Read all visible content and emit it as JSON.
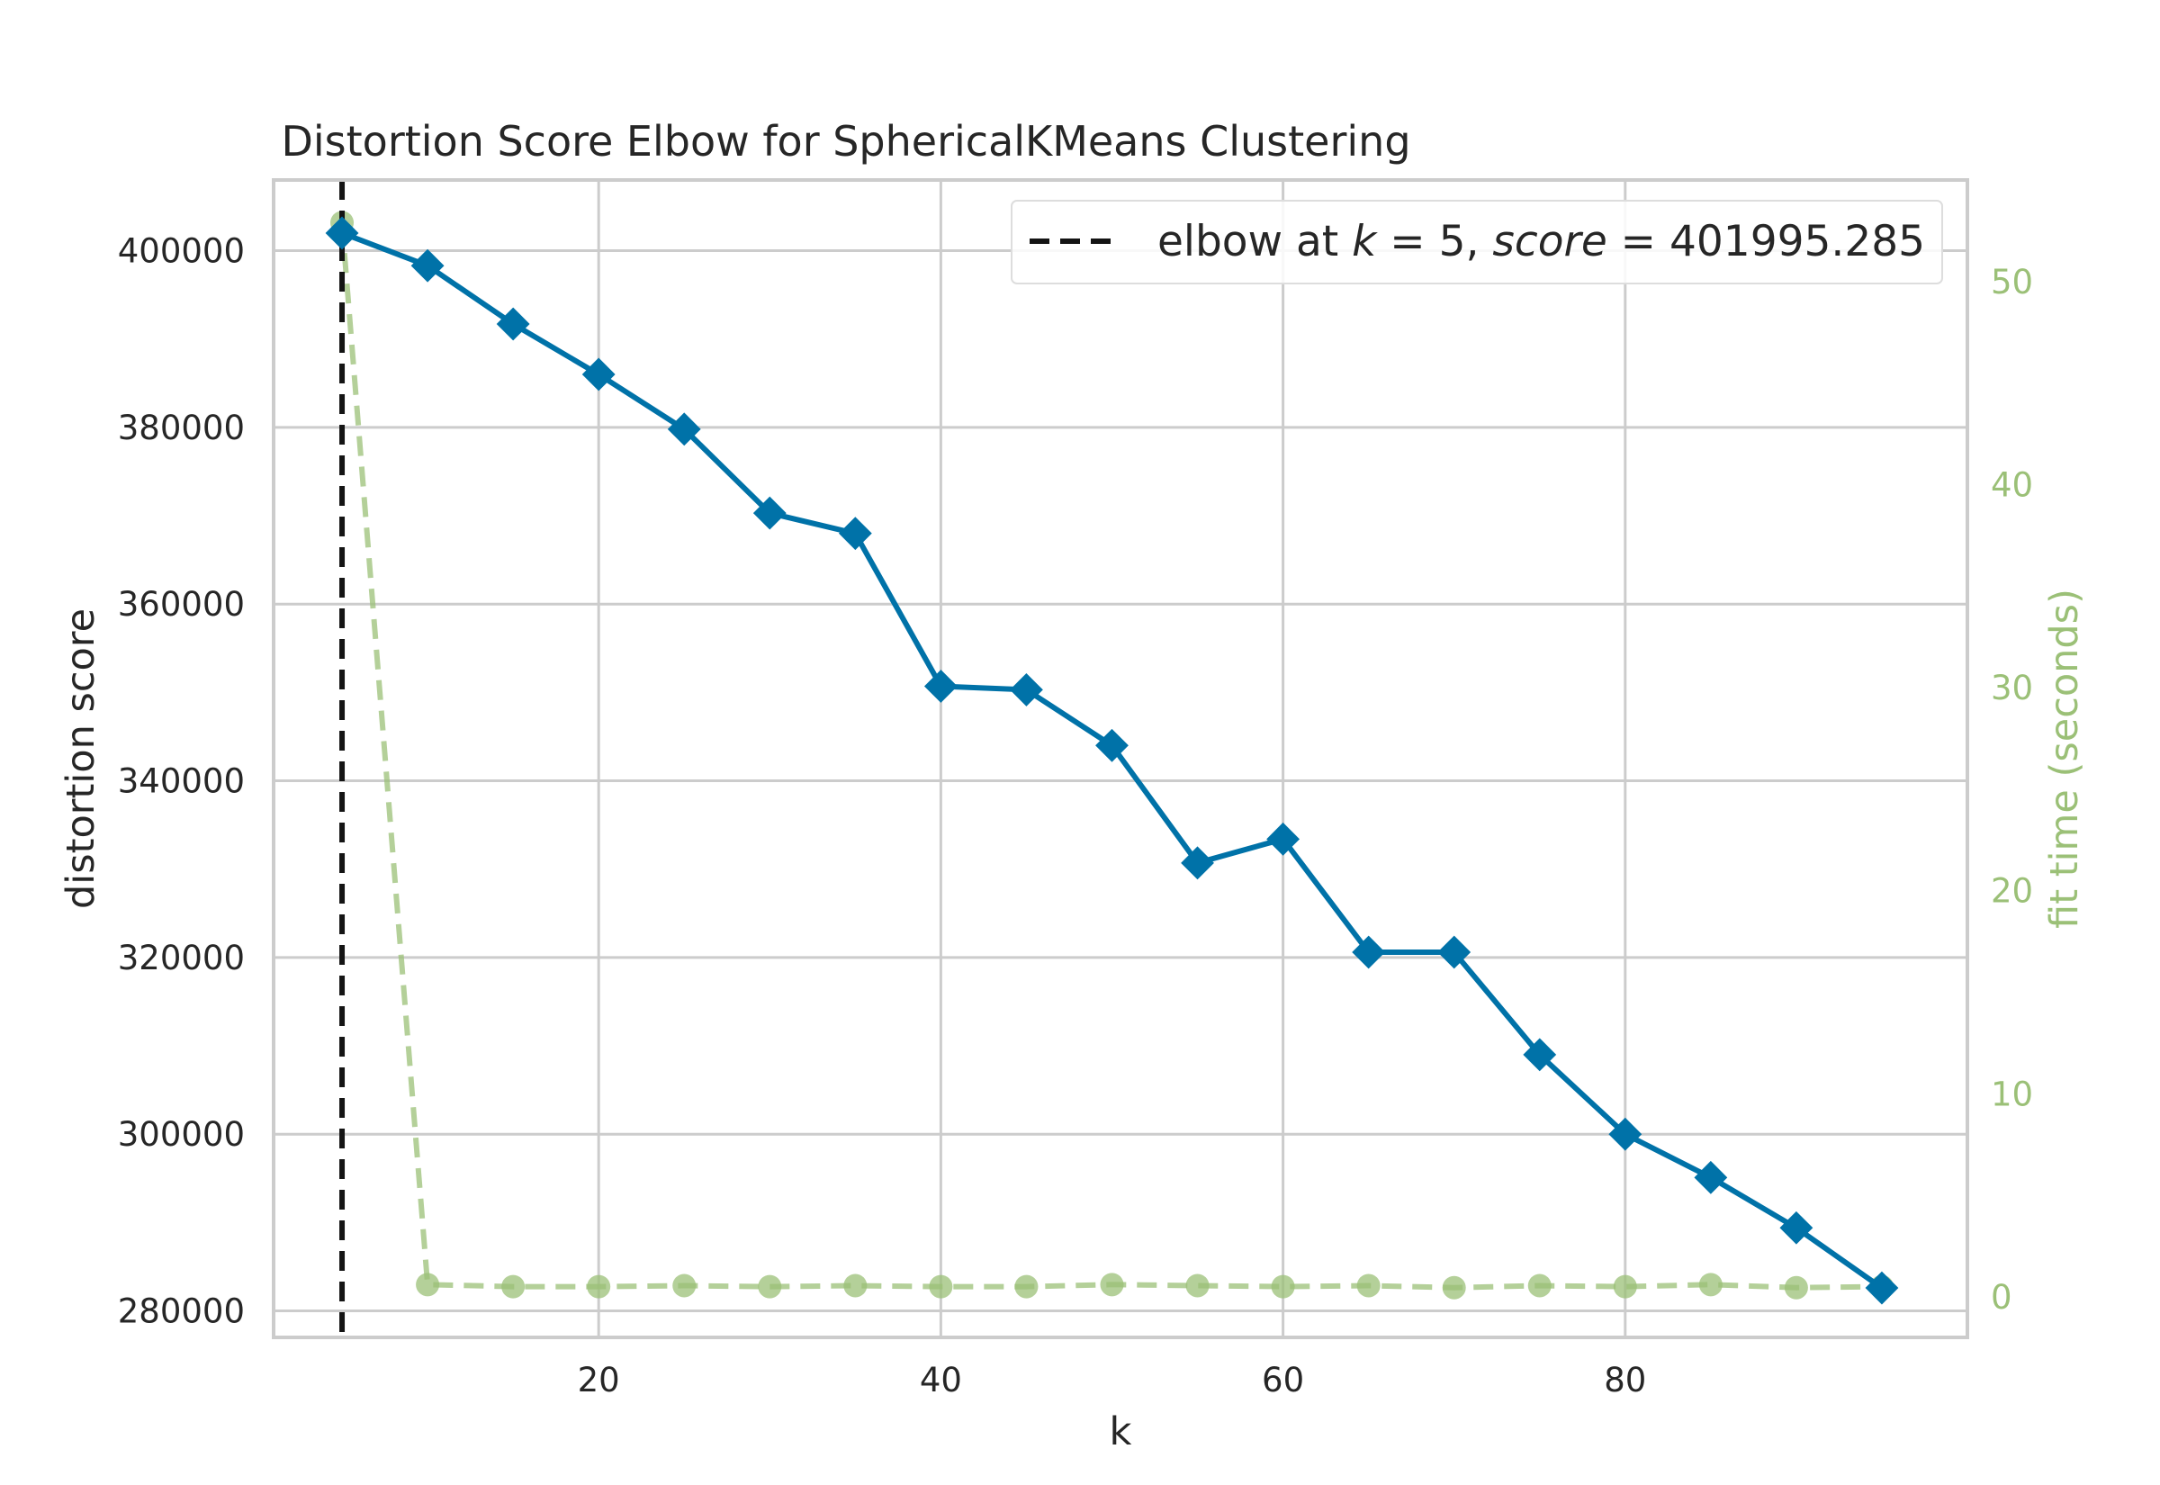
{
  "chart_data": {
    "type": "line",
    "title": "Distortion Score Elbow for SphericalKMeans Clustering",
    "xlabel": "k",
    "ylabel": "distortion score",
    "y2label": "fit time (seconds)",
    "xlim": [
      1,
      100
    ],
    "ylim": [
      277000,
      408000
    ],
    "y2lim": [
      -2,
      55
    ],
    "xticks": [
      20,
      40,
      60,
      80
    ],
    "yticks": [
      280000,
      300000,
      320000,
      340000,
      360000,
      380000,
      400000
    ],
    "y2ticks": [
      0,
      10,
      20,
      30,
      40,
      50
    ],
    "grid": true,
    "legend": {
      "placement": "top-right",
      "label_prefix": "elbow at ",
      "k_var": "k",
      "eq": " = ",
      "k_value": "5",
      "sep": ", ",
      "score_var": "score",
      "score_value": "401995.285"
    },
    "elbow_k": 5,
    "x": [
      5,
      10,
      15,
      20,
      25,
      30,
      35,
      40,
      45,
      50,
      55,
      60,
      65,
      70,
      75,
      80,
      85,
      90,
      95
    ],
    "series": [
      {
        "name": "distortion score",
        "axis": "left",
        "color": "#0072a8",
        "values": [
          401995.285,
          398300,
          391700,
          386000,
          379800,
          370300,
          368000,
          350700,
          350300,
          344000,
          330700,
          333400,
          320600,
          320600,
          309000,
          300000,
          295100,
          289400,
          282600
        ]
      },
      {
        "name": "fit time (seconds)",
        "axis": "right",
        "color": "#9bc077",
        "values": [
          52.9,
          0.6,
          0.5,
          0.5,
          0.55,
          0.5,
          0.55,
          0.5,
          0.5,
          0.6,
          0.55,
          0.5,
          0.55,
          0.45,
          0.55,
          0.5,
          0.6,
          0.45,
          0.5
        ]
      }
    ]
  }
}
